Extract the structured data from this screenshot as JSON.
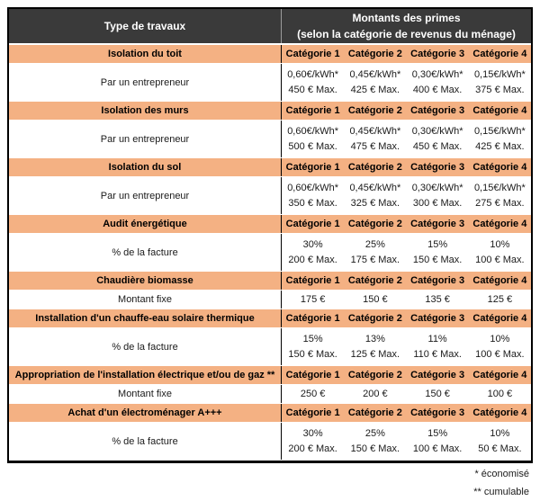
{
  "header": {
    "type_col": "Type de travaux",
    "primes_line1": "Montants des primes",
    "primes_line2": "(selon la catégorie de revenus du ménage)"
  },
  "categories": [
    "Catégorie 1",
    "Catégorie 2",
    "Catégorie 3",
    "Catégorie 4"
  ],
  "sections": [
    {
      "title": "Isolation du toit",
      "label": "Par un entrepreneur",
      "line1": [
        "0,60€/kWh*",
        "0,45€/kWh*",
        "0,30€/kWh*",
        "0,15€/kWh*"
      ],
      "line2": [
        "450 € Max.",
        "425 € Max.",
        "400 € Max.",
        "375 € Max."
      ]
    },
    {
      "title": "Isolation des murs",
      "label": "Par un entrepreneur",
      "line1": [
        "0,60€/kWh*",
        "0,45€/kWh*",
        "0,30€/kWh*",
        "0,15€/kWh*"
      ],
      "line2": [
        "500 € Max.",
        "475 € Max.",
        "450 € Max.",
        "425 € Max."
      ]
    },
    {
      "title": "Isolation du sol",
      "label": "Par un entrepreneur",
      "line1": [
        "0,60€/kWh*",
        "0,45€/kWh*",
        "0,30€/kWh*",
        "0,15€/kWh*"
      ],
      "line2": [
        "350 € Max.",
        "325 € Max.",
        "300 € Max.",
        "275 € Max."
      ]
    },
    {
      "title": "Audit énergétique",
      "label": "% de la facture",
      "line1": [
        "30%",
        "25%",
        "15%",
        "10%"
      ],
      "line2": [
        "200 € Max.",
        "175 € Max.",
        "150 € Max.",
        "100 € Max."
      ]
    },
    {
      "title": "Chaudière biomasse",
      "label": "Montant fixe",
      "line1": [
        "175 €",
        "150 €",
        "135 €",
        "125 €"
      ]
    },
    {
      "title": "Installation d'un chauffe-eau solaire thermique",
      "label": "% de la facture",
      "line1": [
        "15%",
        "13%",
        "11%",
        "10%"
      ],
      "line2": [
        "150 € Max.",
        "125 € Max.",
        "110 € Max.",
        "100 € Max."
      ]
    },
    {
      "title": "Appropriation de l'installation électrique et/ou de gaz **",
      "label": "Montant fixe",
      "line1": [
        "250 €",
        "200 €",
        "150 €",
        "100 €"
      ]
    },
    {
      "title": "Achat d'un électroménager A+++",
      "label": "% de la facture",
      "line1": [
        "30%",
        "25%",
        "15%",
        "10%"
      ],
      "line2": [
        "200 € Max.",
        "150 € Max.",
        "100 € Max.",
        "50 € Max."
      ]
    }
  ],
  "footnotes": [
    "* économisé",
    "** cumulable"
  ],
  "colors": {
    "header_bg": "#3a3a3a",
    "header_text": "#ffffff",
    "section_row_bg": "#f4b183",
    "border": "#000000"
  }
}
